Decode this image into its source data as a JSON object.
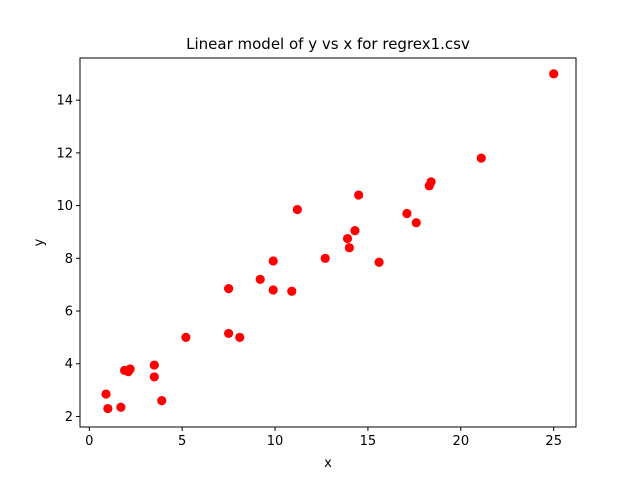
{
  "chart_data": {
    "type": "scatter",
    "title": "Linear model of y vs x for regrex1.csv",
    "xlabel": "x",
    "ylabel": "y",
    "xlim": [
      -0.5,
      26.2
    ],
    "ylim": [
      1.6,
      15.6
    ],
    "xticks": [
      0,
      5,
      10,
      15,
      20,
      25
    ],
    "yticks": [
      2,
      4,
      6,
      8,
      10,
      12,
      14
    ],
    "x_tick_labels": [
      "0",
      "5",
      "10",
      "15",
      "20",
      "25"
    ],
    "y_tick_labels": [
      "2",
      "4",
      "6",
      "8",
      "10",
      "12",
      "14"
    ],
    "grid": false,
    "legend": "none",
    "marker_color": "#ff0000",
    "series": [
      {
        "points": [
          {
            "x": 0.9,
            "y": 2.85
          },
          {
            "x": 1.0,
            "y": 2.3
          },
          {
            "x": 1.7,
            "y": 2.35
          },
          {
            "x": 1.9,
            "y": 3.75
          },
          {
            "x": 2.1,
            "y": 3.7
          },
          {
            "x": 2.2,
            "y": 3.8
          },
          {
            "x": 3.5,
            "y": 3.95
          },
          {
            "x": 3.5,
            "y": 3.5
          },
          {
            "x": 3.9,
            "y": 2.6
          },
          {
            "x": 5.2,
            "y": 5.0
          },
          {
            "x": 7.5,
            "y": 6.85
          },
          {
            "x": 7.5,
            "y": 5.15
          },
          {
            "x": 8.1,
            "y": 5.0
          },
          {
            "x": 9.2,
            "y": 7.2
          },
          {
            "x": 9.9,
            "y": 7.9
          },
          {
            "x": 9.9,
            "y": 6.8
          },
          {
            "x": 10.9,
            "y": 6.75
          },
          {
            "x": 11.2,
            "y": 9.85
          },
          {
            "x": 12.7,
            "y": 8.0
          },
          {
            "x": 13.9,
            "y": 8.75
          },
          {
            "x": 14.0,
            "y": 8.4
          },
          {
            "x": 14.3,
            "y": 9.05
          },
          {
            "x": 14.5,
            "y": 10.4
          },
          {
            "x": 15.6,
            "y": 7.85
          },
          {
            "x": 17.1,
            "y": 9.7
          },
          {
            "x": 17.6,
            "y": 9.35
          },
          {
            "x": 18.3,
            "y": 10.75
          },
          {
            "x": 18.4,
            "y": 10.9
          },
          {
            "x": 21.1,
            "y": 11.8
          },
          {
            "x": 25.0,
            "y": 15.0
          }
        ]
      }
    ]
  }
}
